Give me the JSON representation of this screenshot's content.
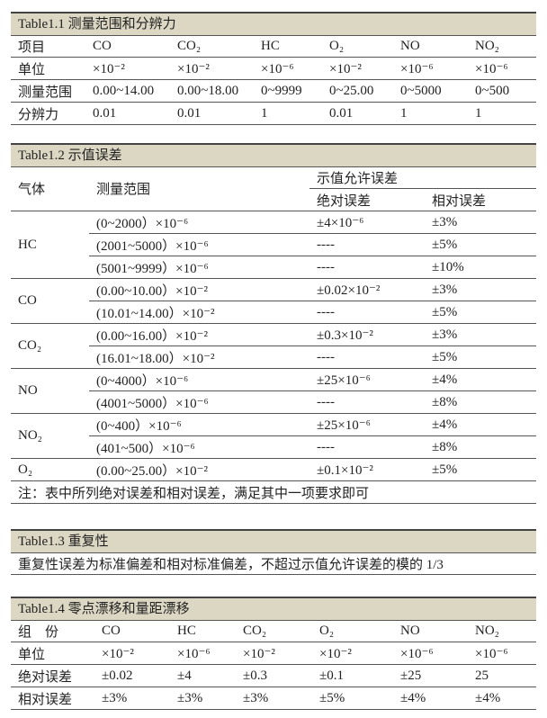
{
  "table1_1": {
    "caption": "Table1.1  测量范围和分辨力",
    "rows": [
      [
        "项目",
        "CO",
        "CO₂",
        "HC",
        "O₂",
        "NO",
        "NO₂"
      ],
      [
        "单位",
        "×10⁻²",
        "×10⁻²",
        "×10⁻⁶",
        "×10⁻²",
        "×10⁻⁶",
        "×10⁻⁶"
      ],
      [
        "测量范围",
        "0.00~14.00",
        "0.00~18.00",
        "0~9999",
        "0~25.00",
        "0~5000",
        "0~500"
      ],
      [
        "分辨力",
        "0.01",
        "0.01",
        "1",
        "0.01",
        "1",
        "1"
      ]
    ]
  },
  "table1_2": {
    "caption": "Table1.2  示值误差",
    "header": {
      "gas": "气体",
      "range": "测量范围",
      "allowed": "示值允许误差",
      "absolute": "绝对误差",
      "relative": "相对误差"
    },
    "groups": [
      {
        "gas": "HC",
        "rows": [
          [
            "(0~2000）×10⁻⁶",
            "±4×10⁻⁶",
            "±3%"
          ],
          [
            "(2001~5000）×10⁻⁶",
            "----",
            "±5%"
          ],
          [
            "(5001~9999）×10⁻⁶",
            "----",
            "±10%"
          ]
        ]
      },
      {
        "gas": "CO",
        "rows": [
          [
            "(0.00~10.00）×10⁻²",
            "±0.02×10⁻²",
            "±3%"
          ],
          [
            "(10.01~14.00）×10⁻²",
            "----",
            "±5%"
          ]
        ]
      },
      {
        "gas": "CO₂",
        "rows": [
          [
            "(0.00~16.00）×10⁻²",
            "±0.3×10⁻²",
            "±3%"
          ],
          [
            "(16.01~18.00）×10⁻²",
            "----",
            "±5%"
          ]
        ]
      },
      {
        "gas": "NO",
        "rows": [
          [
            "(0~4000）×10⁻⁶",
            "±25×10⁻⁶",
            "±4%"
          ],
          [
            "(4001~5000）×10⁻⁶",
            "----",
            "±8%"
          ]
        ]
      },
      {
        "gas": "NO₂",
        "rows": [
          [
            "(0~400）×10⁻⁶",
            "±25×10⁻⁶",
            "±4%"
          ],
          [
            "(401~500）×10⁻⁶",
            "----",
            "±8%"
          ]
        ]
      },
      {
        "gas": "O₂",
        "rows": [
          [
            "(0.00~25.00）×10⁻²",
            "±0.1×10⁻²",
            "±5%"
          ]
        ]
      }
    ],
    "note": "注：表中所列绝对误差和相对误差，满足其中一项要求即可"
  },
  "table1_3": {
    "caption": "Table1.3 重复性",
    "text": "重复性误差为标准偏差和相对标准偏差，不超过示值允许误差的模的 1/3"
  },
  "table1_4": {
    "caption": "Table1.4  零点漂移和量距漂移",
    "rows": [
      [
        "组　份",
        "CO",
        "HC",
        "CO₂",
        "O₂",
        "NO",
        "NO₂"
      ],
      [
        "单位",
        "×10⁻²",
        "×10⁻⁶",
        "×10⁻²",
        "×10⁻²",
        "×10⁻⁶",
        "×10⁻⁶"
      ],
      [
        "绝对误差",
        "±0.02",
        "±4",
        "±0.3",
        "±0.1",
        "±25",
        "25"
      ],
      [
        "相对误差",
        "±3%",
        "±3%",
        "±3%",
        "±5%",
        "±4%",
        "±4%"
      ]
    ]
  },
  "colors": {
    "caption_bg": "#dcd7c3",
    "rule": "#555555"
  }
}
